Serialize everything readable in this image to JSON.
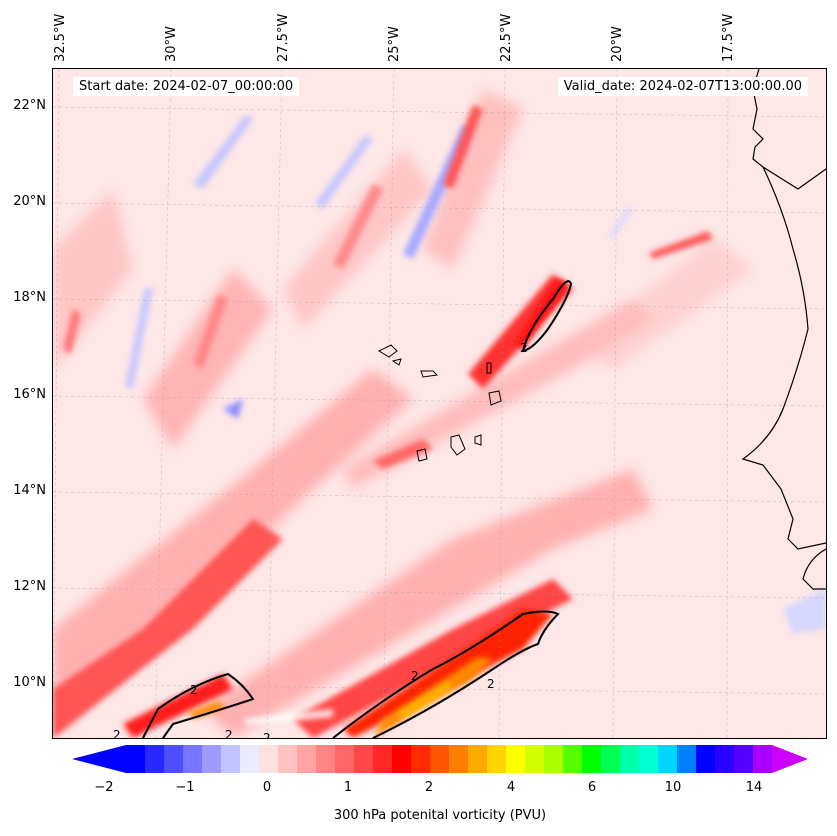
{
  "map": {
    "start_date": "Start date: 2024-02-07_00:00:00",
    "valid_date": "Valid_date: 2024-02-07T13:00:00.00",
    "lon_labels": [
      "32.5°W",
      "30°W",
      "27.5°W",
      "25°W",
      "22.5°W",
      "20°W",
      "17.5°W"
    ],
    "lat_labels": [
      "22°N",
      "20°N",
      "18°N",
      "16°N",
      "14°N",
      "12°N",
      "10°N"
    ],
    "contour_labels": [
      "2",
      "2",
      "2",
      "2",
      "2",
      "2",
      "2"
    ]
  },
  "colorbar": {
    "label": "300 hPa potenital vorticity (PVU)",
    "ticks": [
      "−2",
      "−1",
      "0",
      "1",
      "2",
      "4",
      "6",
      "10",
      "14"
    ],
    "colors": [
      "#0000ff",
      "#2727ff",
      "#4e4eff",
      "#7575ff",
      "#9c9cff",
      "#c3c3ff",
      "#ebebff",
      "#ffe0e0",
      "#ffc2c2",
      "#ffa3a3",
      "#ff8585",
      "#ff6666",
      "#ff4747",
      "#ff2828",
      "#ff0000",
      "#ff2a00",
      "#ff5500",
      "#ff7f00",
      "#ffaa00",
      "#ffd400",
      "#ffff00",
      "#d4ff00",
      "#aaff00",
      "#55ff00",
      "#00ff00",
      "#00ff55",
      "#00ffaa",
      "#00ffd4",
      "#00d4ff",
      "#007fff",
      "#0000ff",
      "#2a00ff",
      "#5500ff",
      "#aa00ff"
    ],
    "extend_low_color": "#0000ff",
    "extend_high_color": "#cc00ff"
  }
}
